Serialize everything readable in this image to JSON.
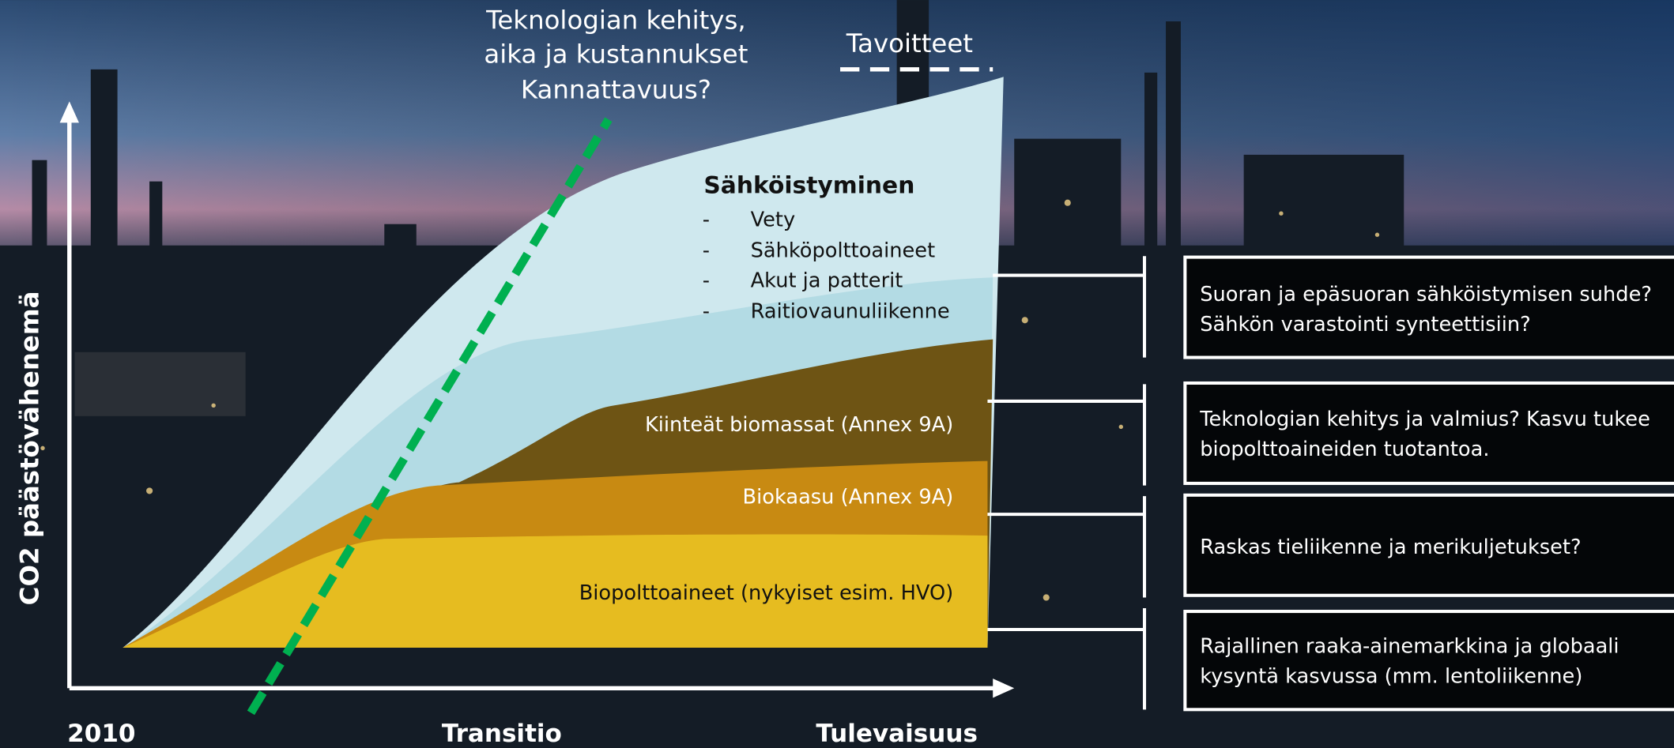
{
  "top_note": {
    "lines": [
      "Teknologian kehitys,",
      "aika ja kustannukset",
      "Kannattavuus?"
    ]
  },
  "target_label": "Tavoitteet",
  "y_axis_label": "CO2 päästövähenemä",
  "x_labels": [
    "2010",
    "Transitio",
    "Tulevaisuus"
  ],
  "layers": {
    "electrification": {
      "title": "Sähköistyminen",
      "bullet": "-",
      "items": [
        "Vety",
        "Sähköpolttoaineet",
        "Akut ja patterit",
        "Raitiovaunuliikenne"
      ]
    },
    "solid_biomass": "Kiinteät biomassat (Annex 9A)",
    "biogas": "Biokaasu (Annex 9A)",
    "biofuels": "Biopolttoaineet (nykyiset esim. HVO)"
  },
  "boxes": [
    {
      "lines": [
        "Suoran ja epäsuoran sähköistymisen suhde?",
        "Sähkön varastointi synteettisiin?"
      ]
    },
    {
      "lines": [
        "Teknologian kehitys ja valmius? Kasvu tukee",
        "biopolttoaineiden tuotantoa."
      ]
    },
    {
      "lines": [
        "Raskas tieliikenne ja merikuljetukset?"
      ]
    },
    {
      "lines": [
        "Rajallinen raaka-ainemarkkina ja globaali",
        "kysyntä kasvussa (mm. lentoliikenne)"
      ]
    }
  ]
}
